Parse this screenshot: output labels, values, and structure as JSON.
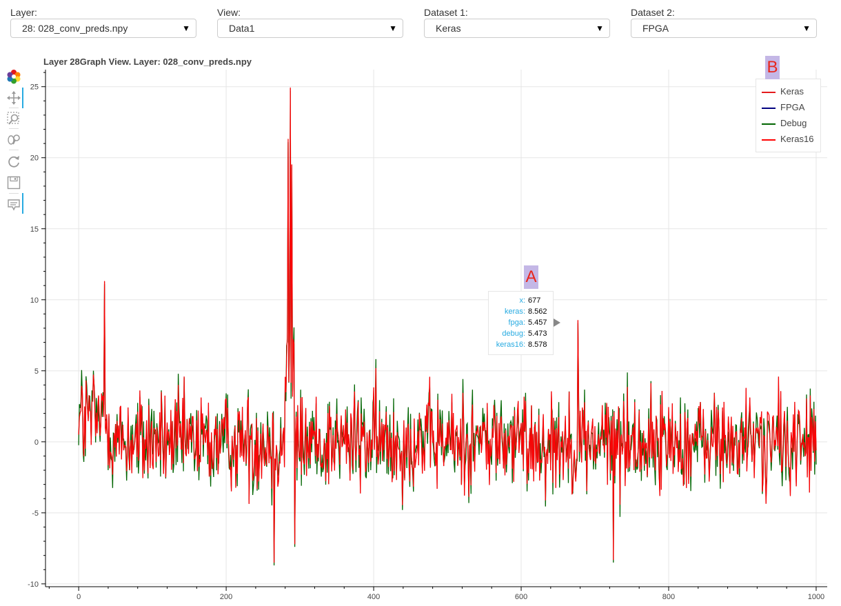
{
  "controls": {
    "layer": {
      "label": "Layer:",
      "value": "28: 028_conv_preds.npy"
    },
    "view": {
      "label": "View:",
      "value": "Data1"
    },
    "dataset1": {
      "label": "Dataset 1:",
      "value": "Keras"
    },
    "dataset2": {
      "label": "Dataset 2:",
      "value": "FPGA"
    }
  },
  "toolbar": {
    "tools": [
      "bokeh-logo-icon",
      "pan-icon",
      "box-zoom-icon",
      "wheel-zoom-icon",
      "reset-icon",
      "save-icon",
      "hover-icon"
    ]
  },
  "markers": {
    "a": "A",
    "b": "B"
  },
  "tooltip": {
    "rows": [
      {
        "key": "x",
        "value": "677"
      },
      {
        "key": "keras",
        "value": "8.562"
      },
      {
        "key": "fpga",
        "value": "5.457"
      },
      {
        "key": "debug",
        "value": "5.473"
      },
      {
        "key": "keras16",
        "value": "8.578"
      }
    ]
  },
  "chart_data": {
    "type": "line",
    "title": "Layer 28Graph View. Layer: 028_conv_preds.npy",
    "xlabel": "",
    "ylabel": "",
    "xlim": [
      -45,
      1015
    ],
    "ylim": [
      -10.2,
      26.2
    ],
    "x_ticks": [
      0,
      200,
      400,
      600,
      800,
      1000
    ],
    "y_ticks": [
      -10,
      -5,
      0,
      5,
      10,
      15,
      20,
      25
    ],
    "x_tick_labels": [
      "0",
      "200",
      "400",
      "600",
      "800",
      "1000"
    ],
    "y_tick_labels": [
      "-10",
      "-5",
      "0",
      "5",
      "10",
      "15",
      "20",
      "25"
    ],
    "legend_position": "top-right",
    "x_range": [
      0,
      1000
    ],
    "peaks": [
      {
        "x": 287,
        "y": 24.9
      },
      {
        "x": 284,
        "y": 21.3
      },
      {
        "x": 289,
        "y": 19.5
      },
      {
        "x": 35,
        "y": 11.3
      },
      {
        "x": 677,
        "y": 8.56
      },
      {
        "x": 293,
        "y": -7.2
      },
      {
        "x": 265,
        "y": -8.5
      },
      {
        "x": 725,
        "y": -8.3
      }
    ],
    "series": [
      {
        "name": "Keras",
        "color": "#e41a1c"
      },
      {
        "name": "FPGA",
        "color": "#000080"
      },
      {
        "name": "Debug",
        "color": "#006400"
      },
      {
        "name": "Keras16",
        "color": "#ff0000"
      }
    ]
  }
}
